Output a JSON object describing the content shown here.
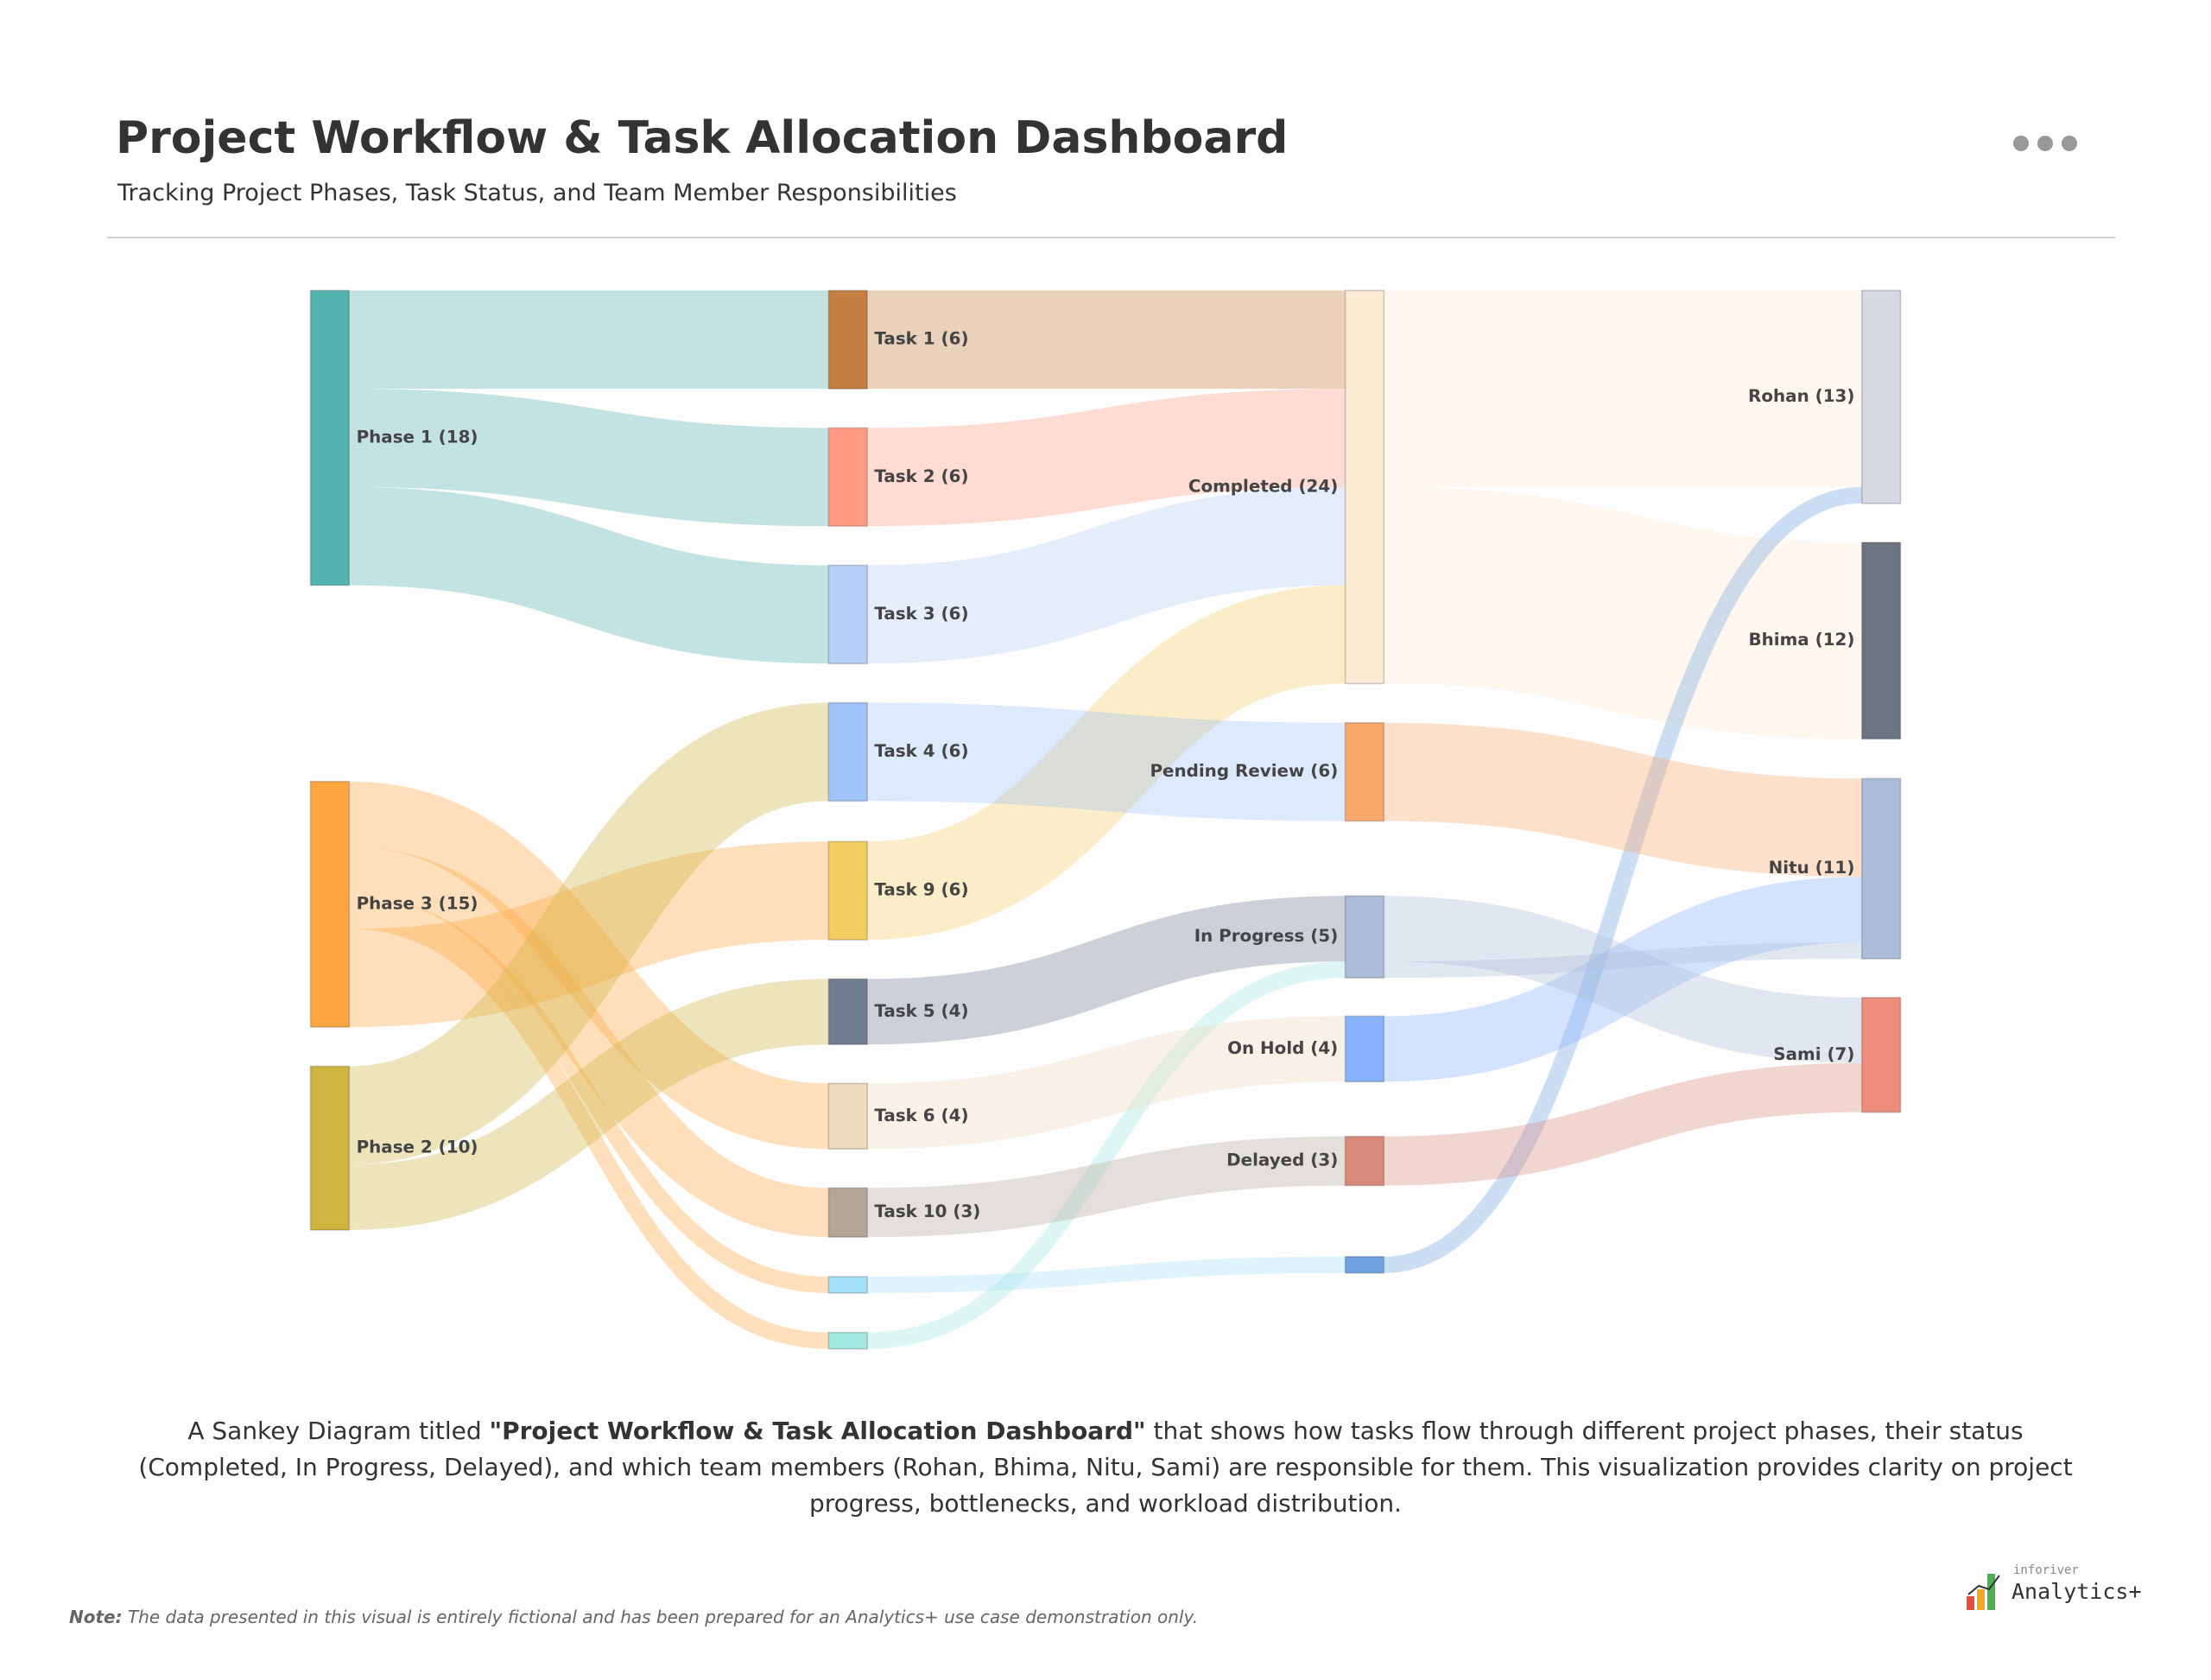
{
  "header": {
    "title": "Project Workflow & Task Allocation Dashboard",
    "subtitle": "Tracking Project Phases, Task Status, and Team Member Responsibilities"
  },
  "chart_data": {
    "type": "sankey",
    "nodes": [
      {
        "label": "Phase 1 (18)",
        "value": 18,
        "color": "#52b3af"
      },
      {
        "label": "Phase 3 (15)",
        "value": 15,
        "color": "#ffa640"
      },
      {
        "label": "Phase 2 (10)",
        "value": 10,
        "color": "#cdb540"
      },
      {
        "label": "Task 1 (6)",
        "value": 6,
        "color": "#c47f41"
      },
      {
        "label": "Task 2 (6)",
        "value": 6,
        "color": "#ff9b83"
      },
      {
        "label": "Task 3 (6)",
        "value": 6,
        "color": "#b8cef7"
      },
      {
        "label": "Task 4 (6)",
        "value": 6,
        "color": "#a0c3f8"
      },
      {
        "label": "Task 9 (6)",
        "value": 6,
        "color": "#f3cd60"
      },
      {
        "label": "Task 5 (4)",
        "value": 4,
        "color": "#717d90"
      },
      {
        "label": "Task 6 (4)",
        "value": 4,
        "color": "#eedbbd"
      },
      {
        "label": "Task 10 (3)",
        "value": 3,
        "color": "#b3a697"
      },
      {
        "label": null,
        "value": 1,
        "color": "#a4e0f7"
      },
      {
        "label": null,
        "value": 1,
        "color": "#a2e8e0"
      },
      {
        "label": "Completed (24)",
        "value": 24,
        "color": "#fcebd5"
      },
      {
        "label": "Pending Review (6)",
        "value": 6,
        "color": "#f8a86b"
      },
      {
        "label": "In Progress (5)",
        "value": 5,
        "color": "#acbcd9"
      },
      {
        "label": "On Hold (4)",
        "value": 4,
        "color": "#88b2fb"
      },
      {
        "label": "Delayed (3)",
        "value": 3,
        "color": "#d98a7b"
      },
      {
        "label": null,
        "value": 1,
        "color": "#6fa3e2"
      },
      {
        "label": "Rohan (13)",
        "value": 13,
        "color": "#d6d9e1"
      },
      {
        "label": "Bhima (12)",
        "value": 12,
        "color": "#6d7480"
      },
      {
        "label": "Nitu (11)",
        "value": 11,
        "color": "#acbdda"
      },
      {
        "label": "Sami (7)",
        "value": 7,
        "color": "#ec8e7b"
      }
    ],
    "links": [
      {
        "source": 0,
        "target": 3,
        "value": 6
      },
      {
        "source": 0,
        "target": 4,
        "value": 6
      },
      {
        "source": 0,
        "target": 5,
        "value": 6
      },
      {
        "source": 1,
        "target": 9,
        "value": 4
      },
      {
        "source": 1,
        "target": 10,
        "value": 3
      },
      {
        "source": 1,
        "target": 11,
        "value": 1
      },
      {
        "source": 1,
        "target": 12,
        "value": 1
      },
      {
        "source": 1,
        "target": 7,
        "value": 6
      },
      {
        "source": 2,
        "target": 6,
        "value": 6
      },
      {
        "source": 2,
        "target": 8,
        "value": 4
      },
      {
        "source": 3,
        "target": 13,
        "value": 6
      },
      {
        "source": 4,
        "target": 13,
        "value": 6
      },
      {
        "source": 5,
        "target": 13,
        "value": 6
      },
      {
        "source": 7,
        "target": 13,
        "value": 6
      },
      {
        "source": 6,
        "target": 14,
        "value": 6
      },
      {
        "source": 8,
        "target": 15,
        "value": 4
      },
      {
        "source": 12,
        "target": 15,
        "value": 1
      },
      {
        "source": 9,
        "target": 16,
        "value": 4
      },
      {
        "source": 10,
        "target": 17,
        "value": 3
      },
      {
        "source": 11,
        "target": 18,
        "value": 1
      },
      {
        "source": 13,
        "target": 19,
        "value": 12
      },
      {
        "source": 13,
        "target": 20,
        "value": 12
      },
      {
        "source": 18,
        "target": 19,
        "value": 1
      },
      {
        "source": 14,
        "target": 21,
        "value": 6
      },
      {
        "source": 16,
        "target": 21,
        "value": 4
      },
      {
        "source": 15,
        "target": 22,
        "value": 4
      },
      {
        "source": 15,
        "target": 21,
        "value": 1
      },
      {
        "source": 17,
        "target": 22,
        "value": 3
      }
    ]
  },
  "description": [
    "A Sankey Diagram titled ",
    "\"Project Workflow & Task Allocation Dashboard\"",
    " that shows how tasks flow through different project phases, their status (Completed, In Progress, Delayed), and which team members (Rohan, Bhima, Nitu, Sami) are responsible for them. This visualization provides clarity on project progress, bottlenecks, and workload distribution."
  ],
  "note": [
    "Note:",
    " The data presented in this visual is entirely fictional and has been prepared for an Analytics+ use case demonstration only."
  ],
  "logo": {
    "brand": "inforiver",
    "product": "Analytics+"
  }
}
